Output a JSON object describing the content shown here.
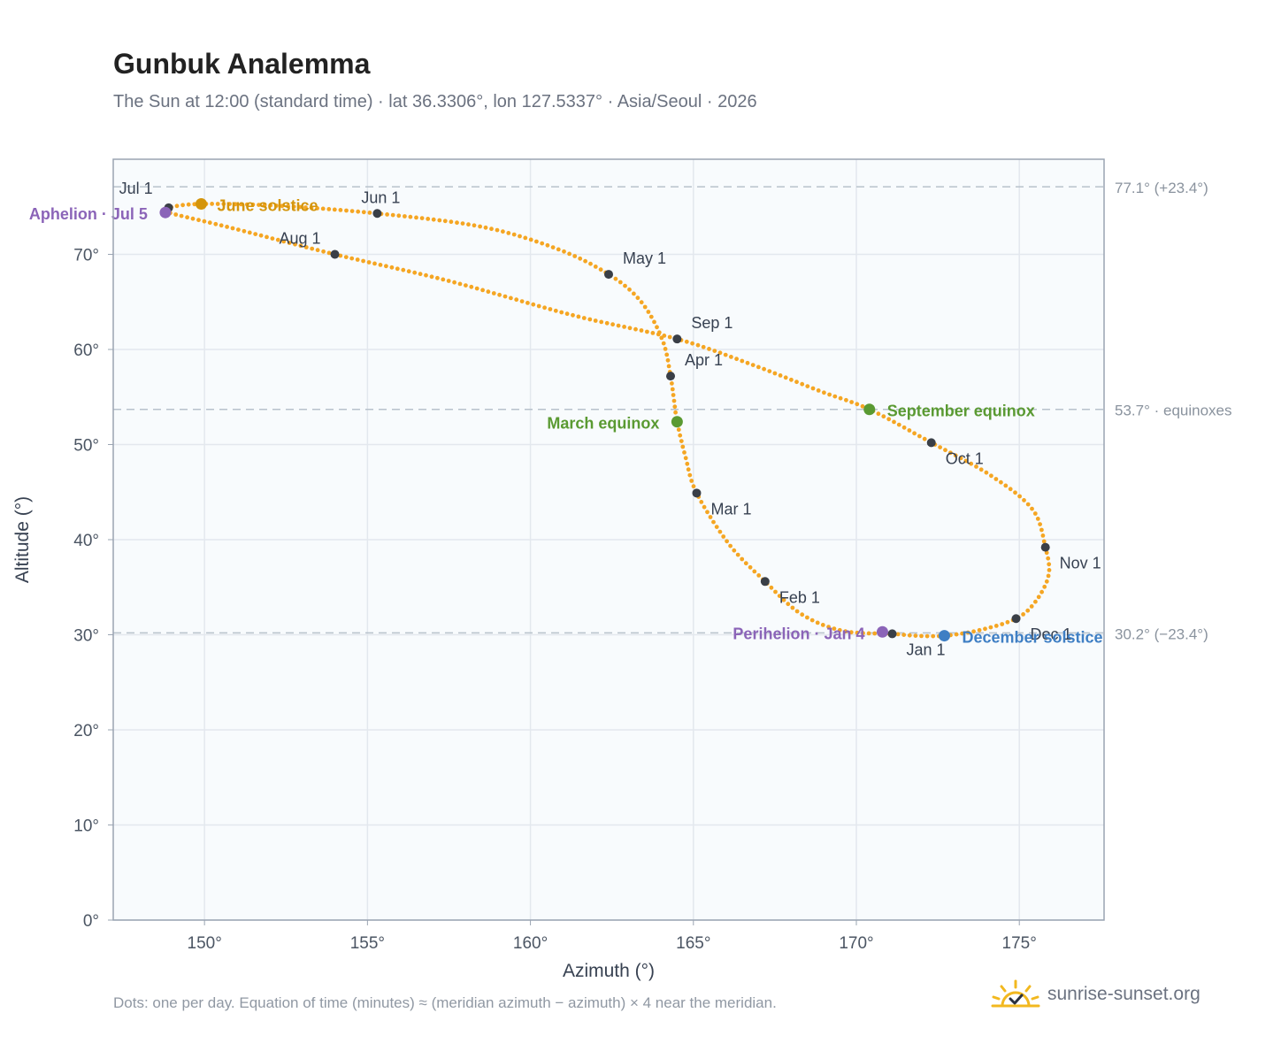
{
  "title": "Gunbuk Analemma",
  "subtitle": "The Sun at 12:00 (standard time) · lat 36.3306°, lon 127.5337° · Asia/Seoul · 2026",
  "footnote": "Dots: one per day. Equation of time (minutes) ≈ (meridian azimuth − azimuth) × 4 near the meridian.",
  "brand": {
    "name": "sunrise-sunset.org",
    "icon": "sun-logo-icon"
  },
  "colors": {
    "curve": "#f5a623",
    "month_marker": "#3a3f47",
    "equinox": "#5a9a32",
    "june_solstice": "#d4950c",
    "december_solstice": "#3f7fc4",
    "apsis": "#8b64b8",
    "reference_line": "#b8c2cc",
    "plot_background": "#f8fbfd",
    "grid": "#e3e8ee",
    "axis_frame": "#9aa4b2"
  },
  "chart_data": {
    "type": "scatter",
    "xlabel": "Azimuth (°)",
    "ylabel": "Altitude (°)",
    "xlim": [
      147.2,
      177.6
    ],
    "ylim": [
      0,
      80
    ],
    "x_ticks": [
      150,
      155,
      160,
      165,
      170,
      175
    ],
    "x_tick_labels": [
      "150°",
      "155°",
      "160°",
      "165°",
      "170°",
      "175°"
    ],
    "y_ticks": [
      0,
      10,
      20,
      30,
      40,
      50,
      60,
      70
    ],
    "y_tick_labels": [
      "0°",
      "10°",
      "20°",
      "30°",
      "40°",
      "50°",
      "60°",
      "70°"
    ],
    "grid": true,
    "path": [
      [
        171.1,
        30.1
      ],
      [
        169.6,
        30.4
      ],
      [
        168.3,
        32.2
      ],
      [
        167.2,
        35.6
      ],
      [
        166.1,
        39.5
      ],
      [
        165.1,
        44.9
      ],
      [
        164.75,
        48.8
      ],
      [
        164.5,
        52.4
      ],
      [
        164.4,
        54.8
      ],
      [
        164.3,
        57.2
      ],
      [
        164.05,
        61.0
      ],
      [
        163.4,
        65.0
      ],
      [
        162.4,
        67.9
      ],
      [
        160.8,
        70.6
      ],
      [
        158.5,
        72.9
      ],
      [
        155.3,
        74.3
      ],
      [
        152.3,
        75.1
      ],
      [
        149.9,
        75.3
      ],
      [
        148.9,
        74.9
      ],
      [
        148.9,
        74.4
      ],
      [
        150.8,
        72.8
      ],
      [
        154.0,
        70.0
      ],
      [
        157.5,
        67.2
      ],
      [
        161.3,
        63.6
      ],
      [
        164.5,
        61.1
      ],
      [
        166.8,
        58.4
      ],
      [
        168.9,
        55.6
      ],
      [
        170.4,
        53.7
      ],
      [
        172.3,
        50.2
      ],
      [
        174.1,
        46.8
      ],
      [
        175.4,
        43.2
      ],
      [
        175.8,
        39.2
      ],
      [
        175.9,
        36.3
      ],
      [
        175.5,
        33.5
      ],
      [
        174.9,
        31.7
      ],
      [
        173.8,
        30.5
      ],
      [
        172.7,
        29.9
      ],
      [
        171.8,
        29.9
      ],
      [
        171.1,
        30.1
      ]
    ],
    "month_markers": [
      {
        "label": "Jan 1",
        "az": 171.1,
        "alt": 30.1
      },
      {
        "label": "Feb 1",
        "az": 167.2,
        "alt": 35.6
      },
      {
        "label": "Mar 1",
        "az": 165.1,
        "alt": 44.9
      },
      {
        "label": "Apr 1",
        "az": 164.3,
        "alt": 57.2
      },
      {
        "label": "May 1",
        "az": 162.4,
        "alt": 67.9
      },
      {
        "label": "Jun 1",
        "az": 155.3,
        "alt": 74.3
      },
      {
        "label": "Jul 1",
        "az": 148.9,
        "alt": 74.9
      },
      {
        "label": "Aug 1",
        "az": 154.0,
        "alt": 70.0
      },
      {
        "label": "Sep 1",
        "az": 164.5,
        "alt": 61.1
      },
      {
        "label": "Oct 1",
        "az": 172.3,
        "alt": 50.2
      },
      {
        "label": "Nov 1",
        "az": 175.8,
        "alt": 39.2
      },
      {
        "label": "Dec 1",
        "az": 174.9,
        "alt": 31.7
      }
    ],
    "events": [
      {
        "label": "June solstice",
        "az": 149.9,
        "alt": 75.3,
        "kind": "june_solstice"
      },
      {
        "label": "Aphelion · Jul 5",
        "az": 148.8,
        "alt": 74.4,
        "kind": "apsis"
      },
      {
        "label": "March equinox",
        "az": 164.5,
        "alt": 52.4,
        "kind": "equinox"
      },
      {
        "label": "September equinox",
        "az": 170.4,
        "alt": 53.7,
        "kind": "equinox"
      },
      {
        "label": "Perihelion · Jan 4",
        "az": 170.8,
        "alt": 30.3,
        "kind": "apsis"
      },
      {
        "label": "December solstice",
        "az": 172.7,
        "alt": 29.9,
        "kind": "december_solstice"
      }
    ],
    "reference_lines": [
      {
        "alt": 77.1,
        "label": "77.1° (+23.4°)"
      },
      {
        "alt": 53.7,
        "label": "53.7° · equinoxes"
      },
      {
        "alt": 30.2,
        "label": "30.2° (−23.4°)"
      }
    ]
  }
}
